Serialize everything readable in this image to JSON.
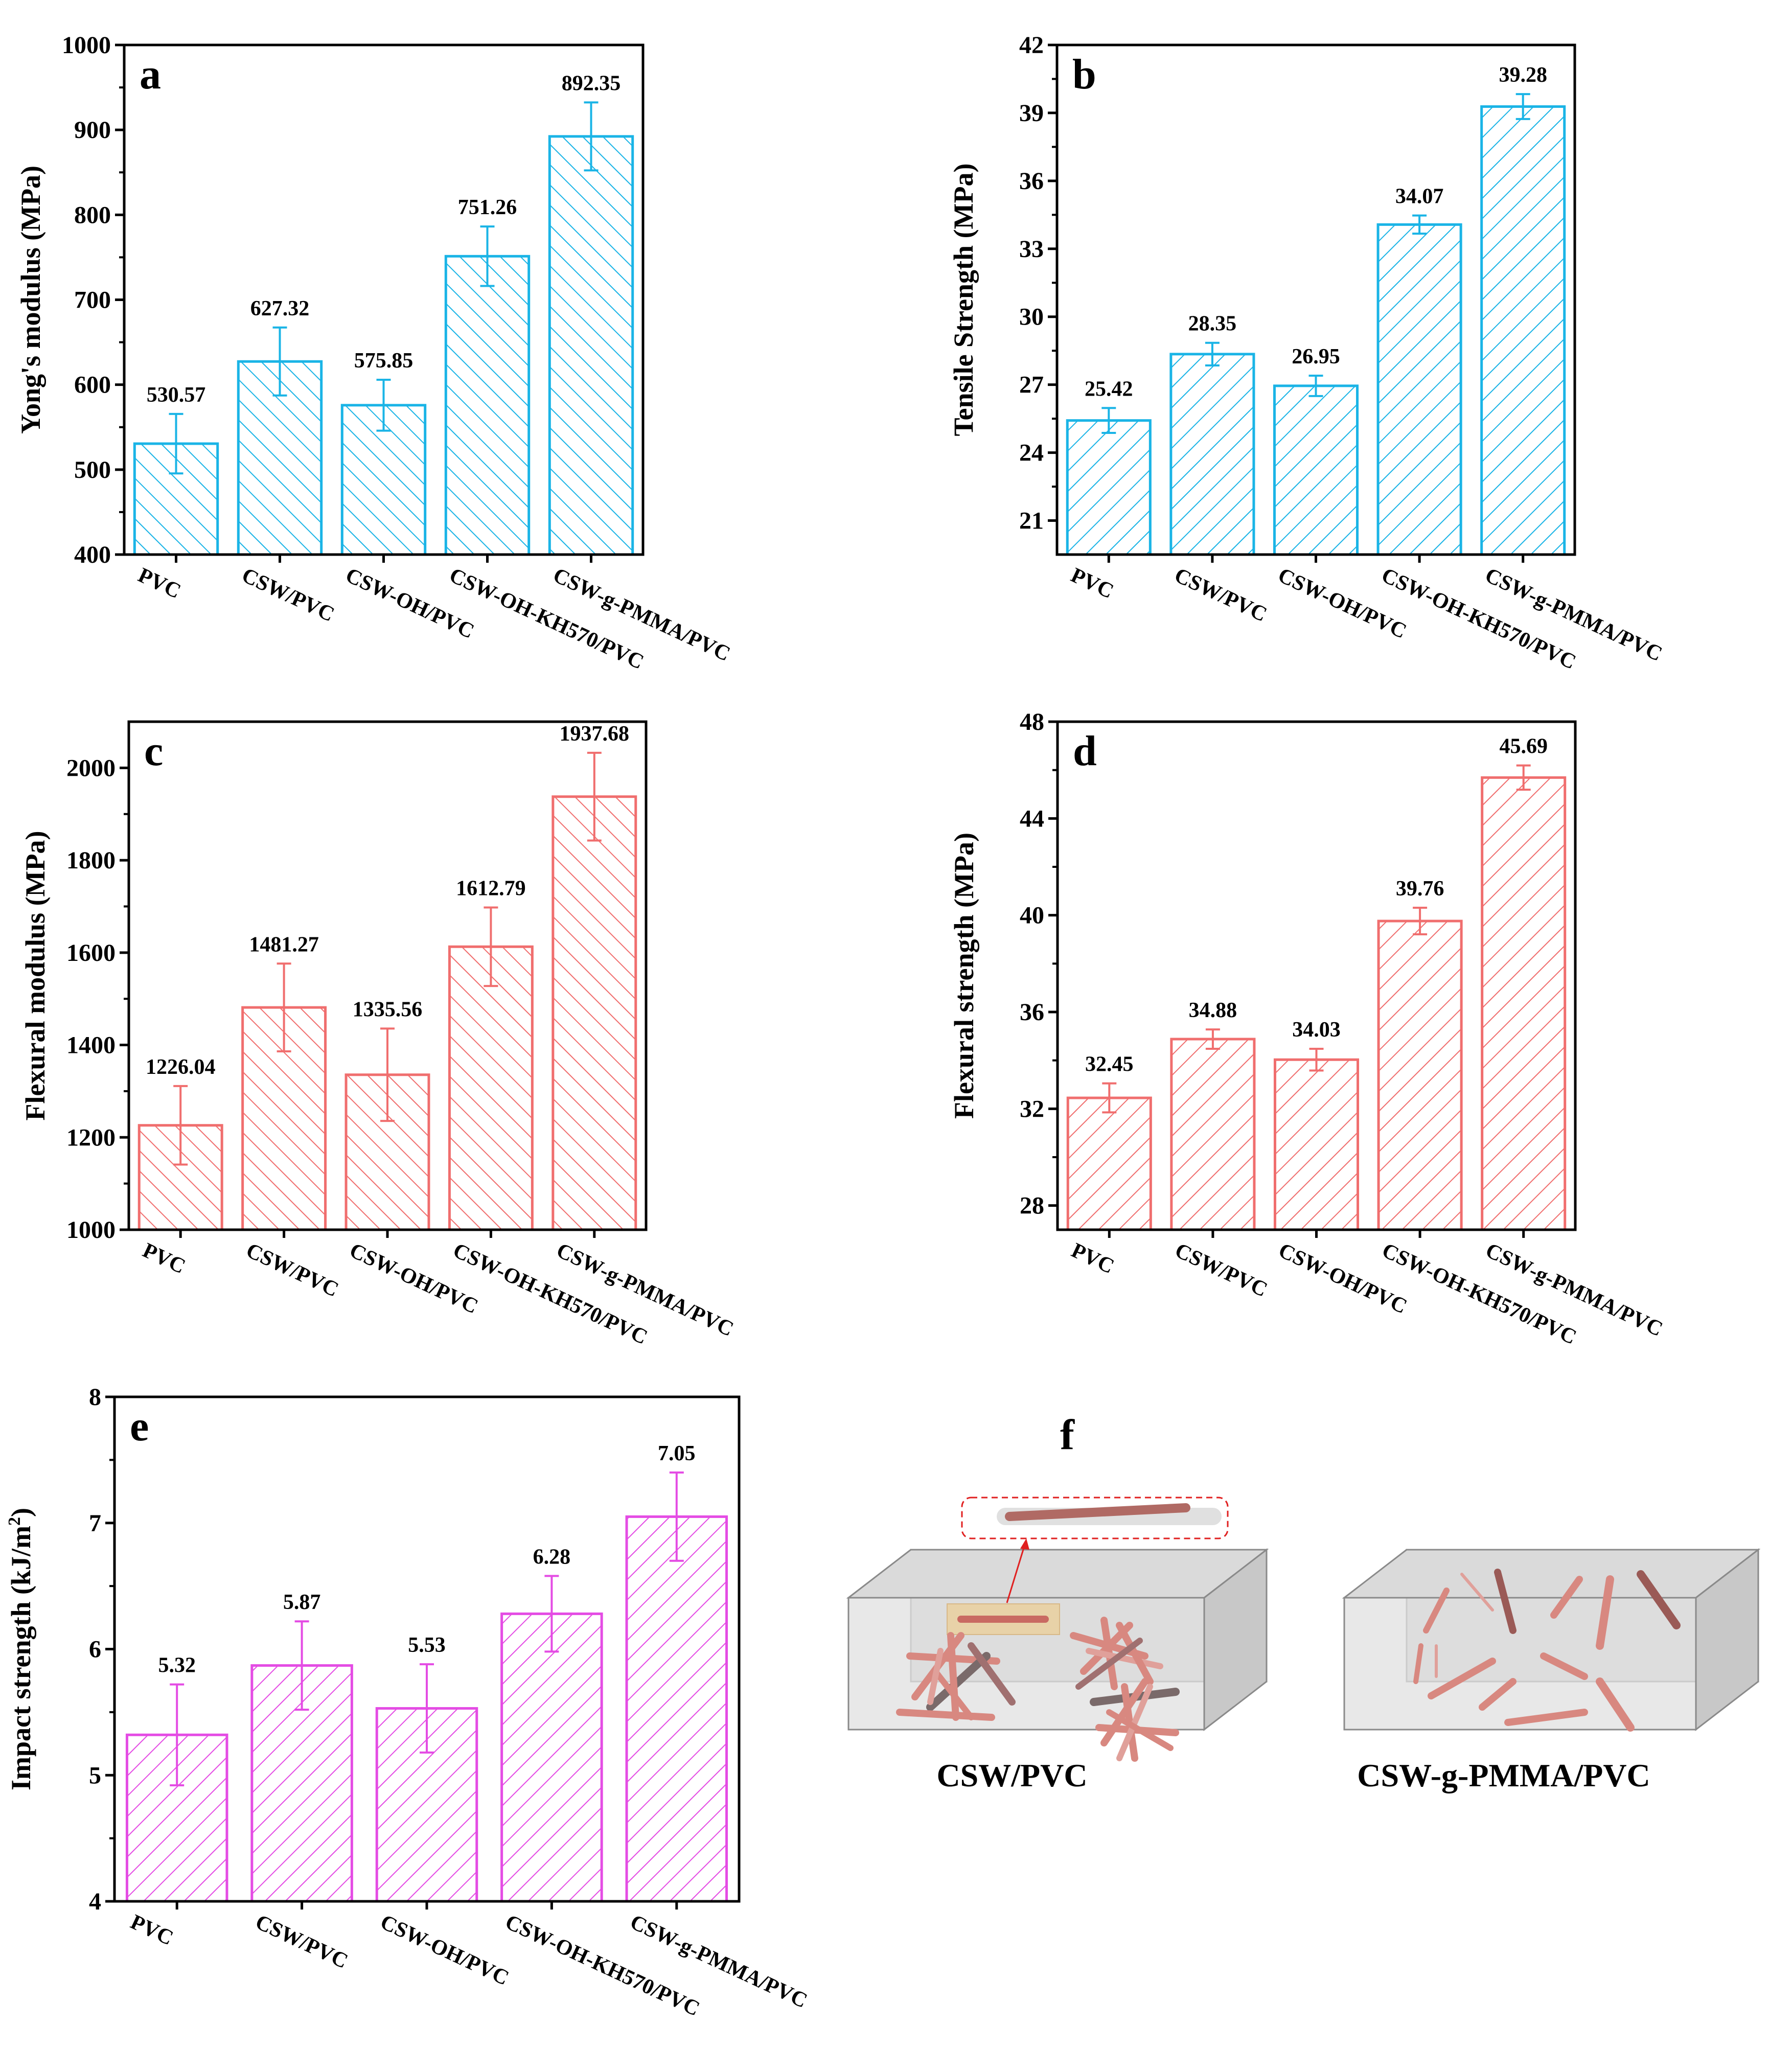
{
  "categories": [
    "PVC",
    "CSW/PVC",
    "CSW-OH/PVC",
    "CSW-OH-KH570/PVC",
    "CSW-g-PMMA/PVC"
  ],
  "chart_data": [
    {
      "id": "a",
      "type": "bar",
      "panel_label": "a",
      "ylabel": "Yong's modulus (MPa)",
      "ylim": [
        400,
        1000
      ],
      "yticks": [
        400,
        500,
        600,
        700,
        800,
        900,
        1000
      ],
      "values": [
        530.57,
        627.32,
        575.85,
        751.26,
        892.35
      ],
      "errors": [
        35,
        40,
        30,
        35,
        40
      ],
      "value_labels": [
        "530.57",
        "627.32",
        "575.85",
        "751.26",
        "892.35"
      ],
      "color": "#1ab4e6",
      "hatch": "back",
      "legend": "none"
    },
    {
      "id": "b",
      "type": "bar",
      "panel_label": "b",
      "ylabel": "Tensile Strength (MPa)",
      "ylim": [
        19.5,
        42
      ],
      "yticks": [
        21,
        24,
        27,
        30,
        33,
        36,
        39,
        42
      ],
      "values": [
        25.42,
        28.35,
        26.95,
        34.07,
        39.28
      ],
      "errors": [
        0.55,
        0.5,
        0.45,
        0.4,
        0.55
      ],
      "value_labels": [
        "25.42",
        "28.35",
        "26.95",
        "34.07",
        "39.28"
      ],
      "color": "#1ab4e6",
      "hatch": "forward",
      "legend": "none"
    },
    {
      "id": "c",
      "type": "bar",
      "panel_label": "c",
      "ylabel": "Flexural modulus (MPa)",
      "ylim": [
        1000,
        2100
      ],
      "yticks": [
        1000,
        1200,
        1400,
        1600,
        1800,
        2000
      ],
      "values": [
        1226.04,
        1481.27,
        1335.56,
        1612.79,
        1937.68
      ],
      "errors": [
        85,
        95,
        100,
        85,
        95
      ],
      "value_labels": [
        "1226.04",
        "1481.27",
        "1335.56",
        "1612.79",
        "1937.68"
      ],
      "color": "#f06e6e",
      "hatch": "back",
      "legend": "none"
    },
    {
      "id": "d",
      "type": "bar",
      "panel_label": "d",
      "ylabel": "Flexural strength (MPa)",
      "ylim": [
        27,
        48
      ],
      "yticks": [
        28,
        32,
        36,
        40,
        44,
        48
      ],
      "values": [
        32.45,
        34.88,
        34.03,
        39.76,
        45.69
      ],
      "errors": [
        0.6,
        0.4,
        0.45,
        0.55,
        0.5
      ],
      "value_labels": [
        "32.45",
        "34.88",
        "34.03",
        "39.76",
        "45.69"
      ],
      "color": "#f06e6e",
      "hatch": "forward",
      "legend": "none"
    },
    {
      "id": "e",
      "type": "bar",
      "panel_label": "e",
      "ylabel": "Impact strength (kJ/m",
      "ylabel_sup": "2",
      "ylabel_close": ")",
      "ylim": [
        4,
        8
      ],
      "yticks": [
        4,
        5,
        6,
        7,
        8
      ],
      "values": [
        5.32,
        5.87,
        5.53,
        6.28,
        7.05
      ],
      "errors": [
        0.4,
        0.35,
        0.35,
        0.3,
        0.35
      ],
      "value_labels": [
        "5.32",
        "5.87",
        "5.53",
        "6.28",
        "7.05"
      ],
      "color": "#e44ce4",
      "hatch": "forward",
      "legend": "none"
    }
  ],
  "panel_f": {
    "label": "f",
    "left_caption": "CSW/PVC",
    "right_caption": "CSW-g-PMMA/PVC"
  }
}
